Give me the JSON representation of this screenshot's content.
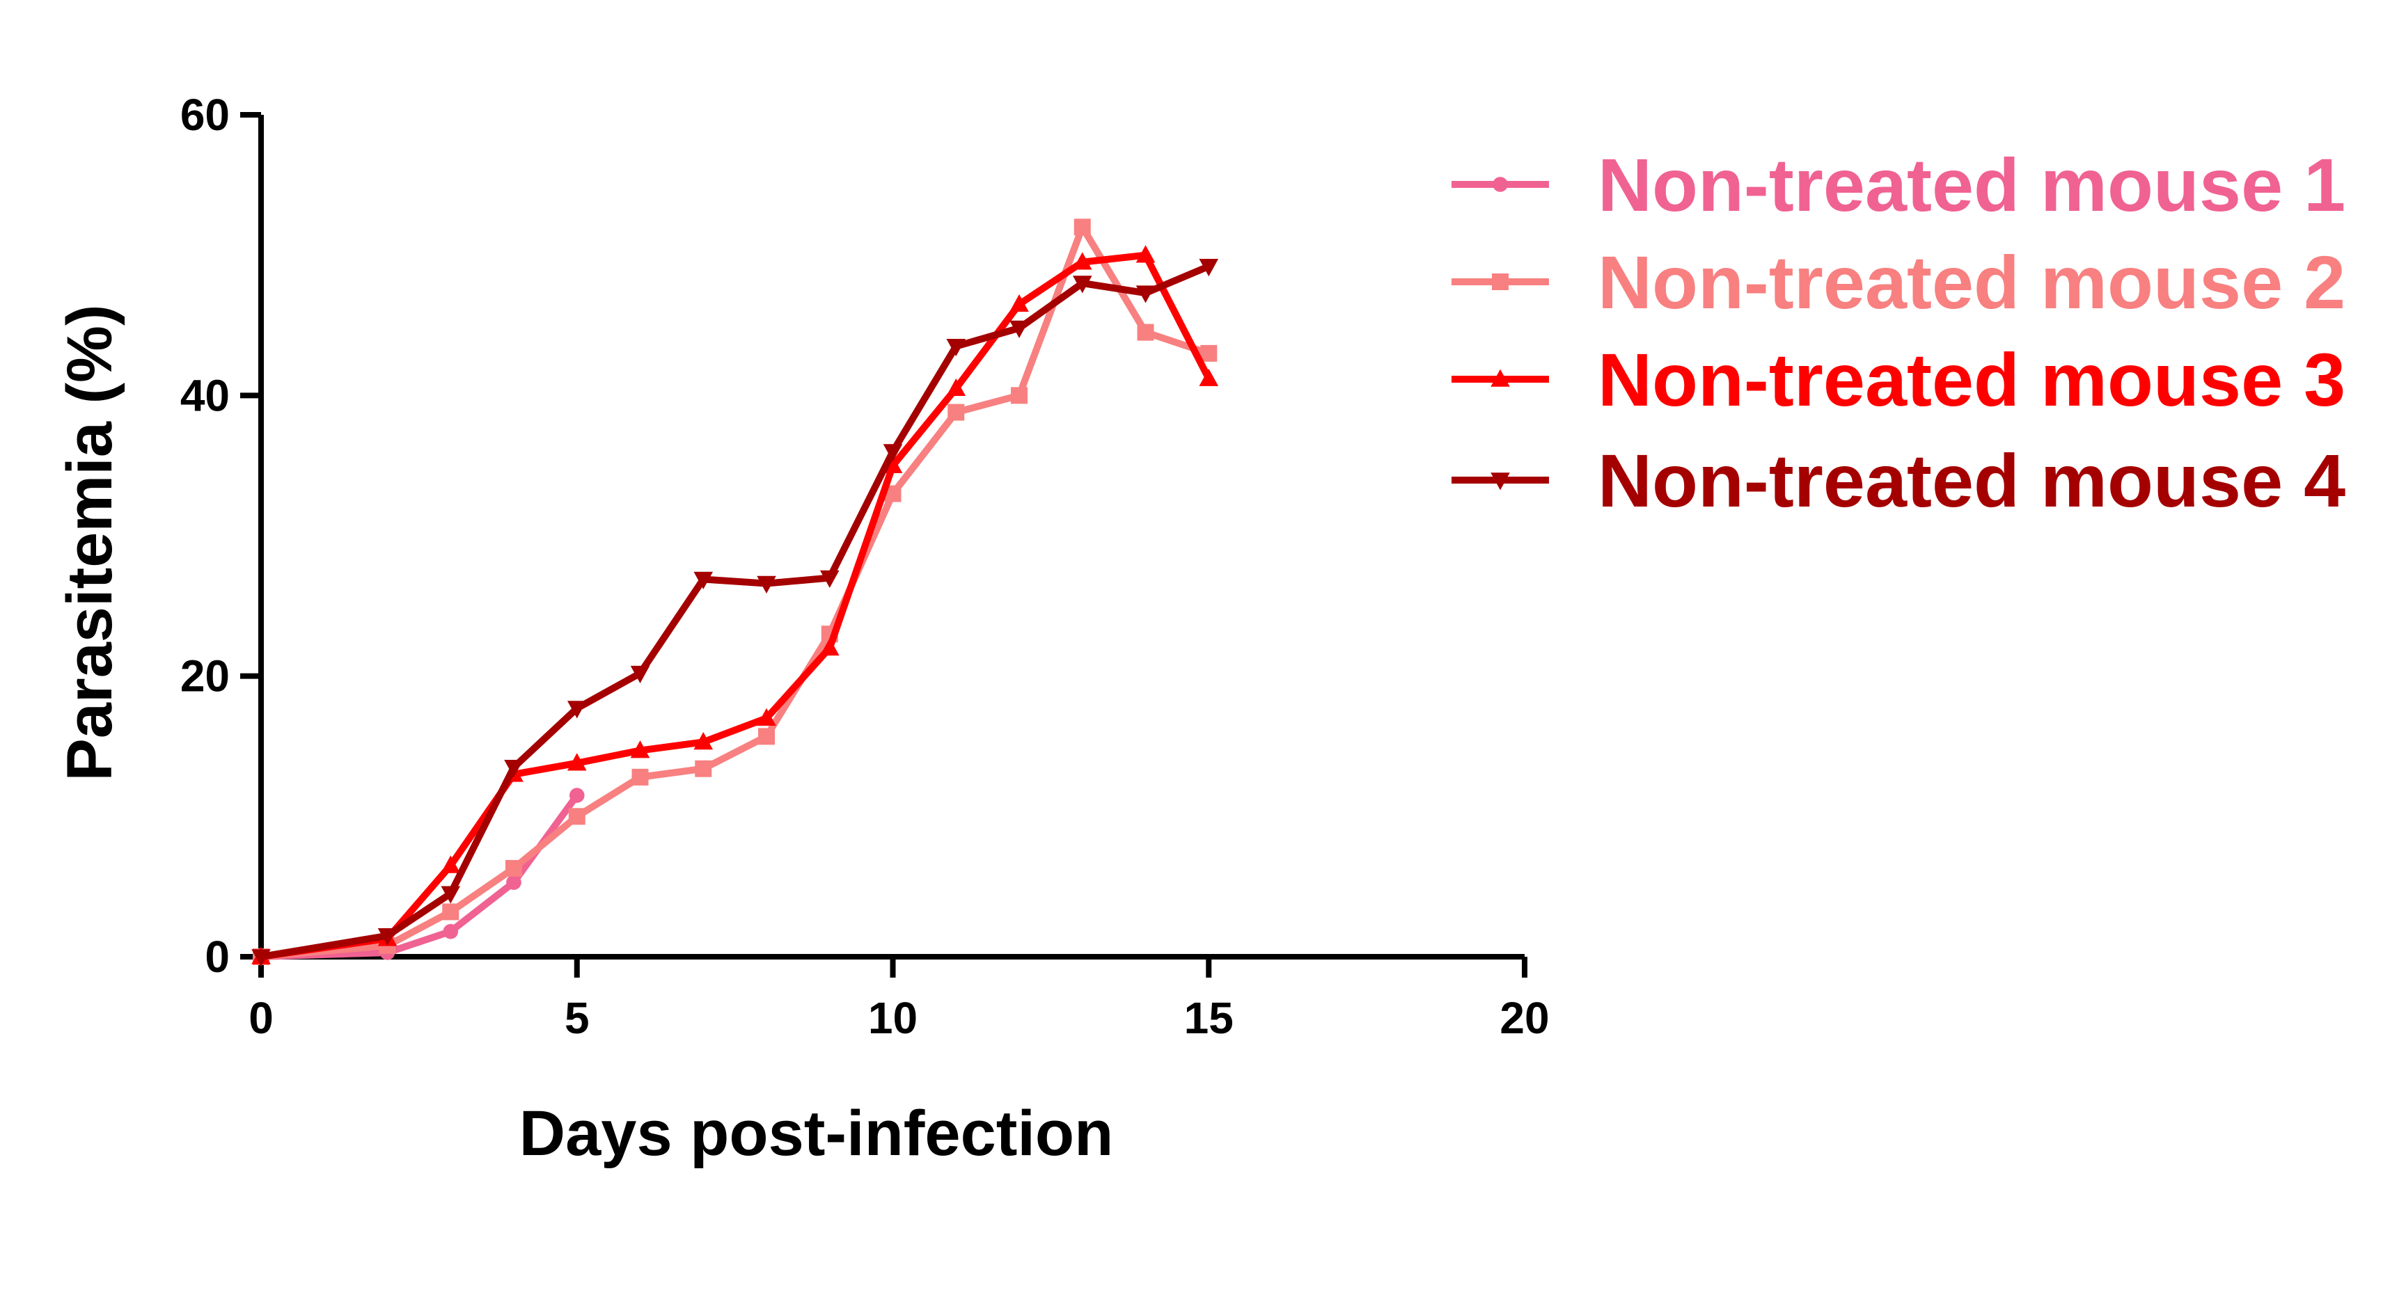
{
  "chart_data": {
    "type": "line",
    "xlabel": "Days post-infection",
    "ylabel": "Parasitemia (%)",
    "xlim": [
      0,
      20
    ],
    "ylim": [
      0,
      60
    ],
    "xticks": [
      0,
      5,
      10,
      15,
      20
    ],
    "yticks": [
      0,
      20,
      40,
      60
    ],
    "grid": false,
    "legend_position": "top-right",
    "series": [
      {
        "name": "Non-treated mouse 1",
        "color": "#F06292",
        "marker": "circle",
        "x": [
          0,
          2,
          3,
          4,
          5
        ],
        "y": [
          0,
          0.3,
          1.8,
          5.3,
          11.5
        ]
      },
      {
        "name": "Non-treated mouse 2",
        "color": "#F88080",
        "marker": "square",
        "x": [
          0,
          2,
          3,
          4,
          5,
          6,
          7,
          8,
          9,
          10,
          11,
          12,
          13,
          14,
          15
        ],
        "y": [
          0,
          0.8,
          3.2,
          6.3,
          10.0,
          12.8,
          13.4,
          15.7,
          23.0,
          33.0,
          38.8,
          40.0,
          52.0,
          44.5,
          43.0
        ]
      },
      {
        "name": "Non-treated mouse 3",
        "color": "#FF0000",
        "marker": "triangle-up",
        "x": [
          0,
          2,
          3,
          4,
          5,
          6,
          7,
          8,
          9,
          10,
          11,
          12,
          13,
          14,
          15
        ],
        "y": [
          0,
          1.3,
          6.5,
          13.0,
          13.8,
          14.7,
          15.3,
          17.0,
          22.0,
          35.0,
          40.5,
          46.5,
          49.5,
          50.0,
          41.2
        ]
      },
      {
        "name": "Non-treated mouse 4",
        "color": "#A50000",
        "marker": "triangle-down",
        "x": [
          0,
          2,
          3,
          4,
          5,
          6,
          7,
          8,
          9,
          10,
          11,
          12,
          13,
          14,
          15
        ],
        "y": [
          0,
          1.5,
          4.5,
          13.5,
          17.7,
          20.2,
          26.9,
          26.6,
          27.0,
          36.0,
          43.5,
          44.8,
          48.0,
          47.3,
          49.2
        ]
      }
    ]
  }
}
